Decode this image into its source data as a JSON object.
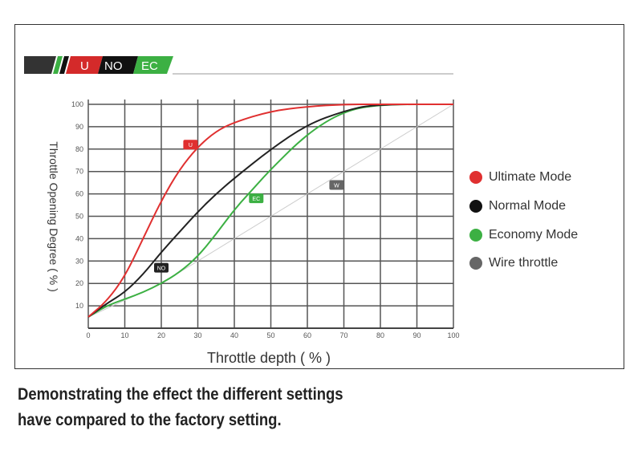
{
  "logo": {
    "badges": [
      "U",
      "NO",
      "EC"
    ]
  },
  "caption": [
    "Demonstrating the effect the different settings",
    "have compared to the factory setting."
  ],
  "chart_data": {
    "type": "line",
    "xlabel": "Throttle depth ( % )",
    "ylabel": "Throttle Opening Degree ( % )",
    "xlim": [
      0,
      100
    ],
    "ylim": [
      0,
      100
    ],
    "xticks": [
      "0",
      "10",
      "20",
      "30",
      "40",
      "50",
      "60",
      "70",
      "80",
      "90",
      "100"
    ],
    "yticks": [
      "10",
      "20",
      "30",
      "40",
      "50",
      "60",
      "70",
      "80",
      "90",
      "100"
    ],
    "grid": true,
    "legend": "right",
    "series": [
      {
        "name": "Ultimate Mode",
        "tag": "U",
        "color": "#e03030",
        "tag_at": [
          28,
          82
        ],
        "points": [
          [
            0,
            5
          ],
          [
            5,
            12
          ],
          [
            10,
            23
          ],
          [
            15,
            40
          ],
          [
            20,
            57
          ],
          [
            25,
            71
          ],
          [
            30,
            81
          ],
          [
            35,
            88
          ],
          [
            40,
            92
          ],
          [
            50,
            97
          ],
          [
            60,
            99
          ],
          [
            70,
            100
          ],
          [
            80,
            100
          ],
          [
            100,
            100
          ]
        ]
      },
      {
        "name": "Normal Mode",
        "tag": "NO",
        "color": "#222222",
        "tag_at": [
          20,
          27
        ],
        "points": [
          [
            0,
            5
          ],
          [
            5,
            11
          ],
          [
            10,
            16
          ],
          [
            15,
            24
          ],
          [
            20,
            34
          ],
          [
            25,
            43
          ],
          [
            30,
            52
          ],
          [
            35,
            60
          ],
          [
            40,
            67
          ],
          [
            50,
            80
          ],
          [
            60,
            91
          ],
          [
            70,
            97
          ],
          [
            78,
            100
          ],
          [
            100,
            100
          ]
        ]
      },
      {
        "name": "Economy Mode",
        "tag": "EC",
        "color": "#3cb043",
        "tag_at": [
          46,
          58
        ],
        "points": [
          [
            0,
            5
          ],
          [
            5,
            10
          ],
          [
            10,
            13
          ],
          [
            15,
            16
          ],
          [
            20,
            20
          ],
          [
            25,
            25
          ],
          [
            30,
            32
          ],
          [
            35,
            42
          ],
          [
            40,
            53
          ],
          [
            45,
            62
          ],
          [
            50,
            71
          ],
          [
            60,
            87
          ],
          [
            70,
            97
          ],
          [
            80,
            100
          ],
          [
            100,
            100
          ]
        ]
      },
      {
        "name": "Wire throttle",
        "tag": "W",
        "color": "#cccccc",
        "marker_color": "#666666",
        "tag_at": [
          68,
          64
        ],
        "points": [
          [
            0,
            5
          ],
          [
            20,
            20
          ],
          [
            100,
            100
          ]
        ]
      }
    ]
  }
}
